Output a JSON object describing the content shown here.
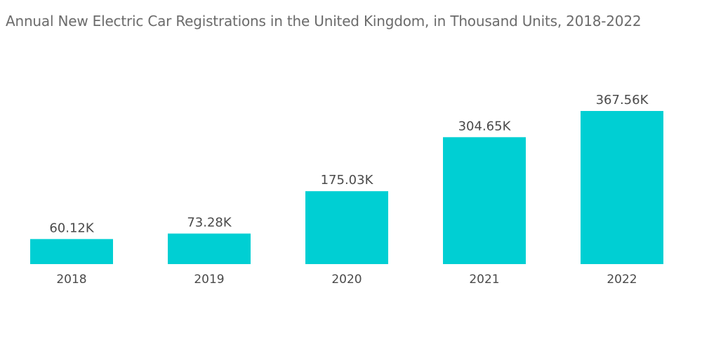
{
  "chart_data": {
    "type": "bar",
    "title": "Annual New Electric Car Registrations in the United Kingdom, in Thousand Units, 2018-2022",
    "xlabel": "",
    "ylabel": "",
    "categories": [
      "2018",
      "2019",
      "2020",
      "2021",
      "2022"
    ],
    "values": [
      60.12,
      73.28,
      175.03,
      304.65,
      367.56
    ],
    "value_labels": [
      "60.12K",
      "73.28K",
      "175.03K",
      "304.65K",
      "367.56K"
    ],
    "ylim": [
      0,
      367.56
    ],
    "grid": false,
    "legend": "none",
    "bar_color": "#00cfd3"
  }
}
